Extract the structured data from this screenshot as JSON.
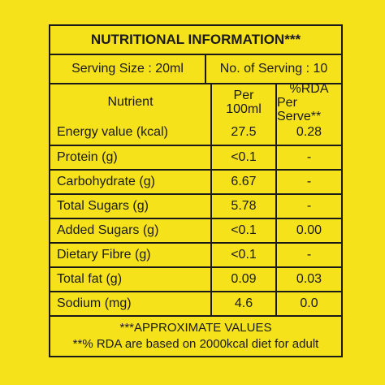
{
  "label": {
    "title": "NUTRITIONAL INFORMATION***",
    "serving_size": "Serving Size : 20ml",
    "servings": "No. of Serving : 10",
    "header": {
      "nutrient": "Nutrient",
      "per100": [
        "Per",
        "100ml"
      ],
      "rda": [
        "%RDA",
        "Per Serve**"
      ]
    },
    "rows": [
      [
        "Energy value (kcal)",
        "27.5",
        "0.28"
      ],
      [
        "Protein (g)",
        "<0.1",
        "-"
      ],
      [
        "Carbohydrate (g)",
        "6.67",
        "-"
      ],
      [
        "Total Sugars (g)",
        "5.78",
        "-"
      ],
      [
        "Added Sugars (g)",
        "<0.1",
        "0.00"
      ],
      [
        "Dietary Fibre (g)",
        "<0.1",
        "-"
      ],
      [
        "Total fat (g)",
        "0.09",
        "0.03"
      ],
      [
        "Sodium (mg)",
        "4.6",
        "0.0"
      ]
    ],
    "footnotes": [
      "***APPROXIMATE VALUES",
      "**% RDA are based on 2000kcal diet for adult"
    ]
  }
}
